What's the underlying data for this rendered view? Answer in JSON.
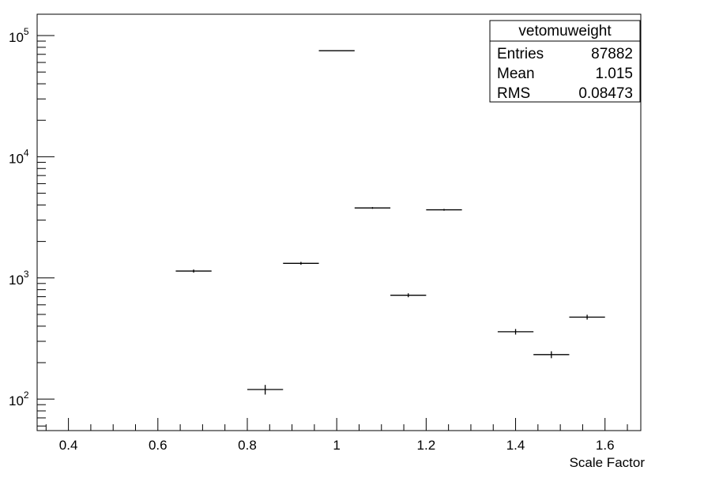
{
  "chart_data": {
    "type": "scatter",
    "style": "histogram-error-bars",
    "xlabel": "Scale Factor",
    "ylabel": "",
    "xlim": [
      0.33,
      1.68
    ],
    "ylim": [
      55,
      150000
    ],
    "yscale": "log",
    "grid": false,
    "x_ticks": [
      "0.4",
      "0.6",
      "0.8",
      "1",
      "1.2",
      "1.4",
      "1.6"
    ],
    "y_ticks": [
      {
        "base": "10",
        "exp": "2",
        "value": 100
      },
      {
        "base": "10",
        "exp": "3",
        "value": 1000
      },
      {
        "base": "10",
        "exp": "4",
        "value": 10000
      },
      {
        "base": "10",
        "exp": "5",
        "value": 100000
      }
    ],
    "bin_width": 0.08,
    "points": [
      {
        "x": 0.68,
        "y": 1140
      },
      {
        "x": 0.84,
        "y": 120
      },
      {
        "x": 0.92,
        "y": 1320
      },
      {
        "x": 1.0,
        "y": 75000
      },
      {
        "x": 1.08,
        "y": 3780
      },
      {
        "x": 1.16,
        "y": 720
      },
      {
        "x": 1.24,
        "y": 3650
      },
      {
        "x": 1.4,
        "y": 360
      },
      {
        "x": 1.48,
        "y": 233
      },
      {
        "x": 1.56,
        "y": 475
      }
    ],
    "stats_box": {
      "title": "vetomuweight",
      "rows": [
        {
          "label": "Entries",
          "value": "87882"
        },
        {
          "label": "Mean",
          "value": "1.015"
        },
        {
          "label": "RMS",
          "value": "0.08473"
        }
      ]
    }
  }
}
